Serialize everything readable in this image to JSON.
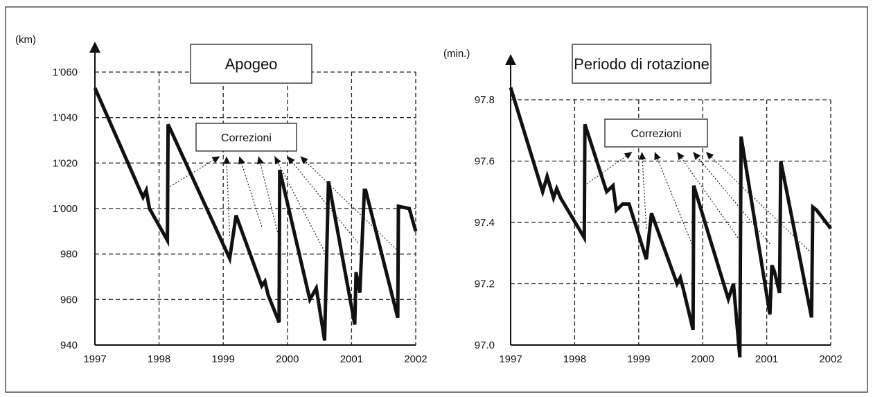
{
  "chart_data": [
    {
      "type": "line",
      "title": "Apogeo",
      "ylabel": "(km)",
      "xlabel": "",
      "annotation": "Correzioni",
      "ylim": [
        940,
        1060
      ],
      "xlim": [
        1997,
        2002
      ],
      "grid": true,
      "x_ticks": [
        "1997",
        "1998",
        "1999",
        "2000",
        "2001",
        "2002"
      ],
      "y_ticks": [
        "940",
        "960",
        "980",
        "1'000",
        "1'020",
        "1'040",
        "1'060"
      ],
      "series": [
        {
          "x": [
            1997.0,
            1997.75,
            1997.8,
            1997.85,
            1998.13,
            1998.14,
            1999.1,
            1999.2,
            1999.6,
            1999.65,
            1999.7,
            1999.87,
            1999.88,
            2000.35,
            2000.45,
            2000.58,
            2000.64,
            2001.05,
            2001.07,
            2001.13,
            2001.2,
            2001.22,
            2001.72,
            2001.73,
            2001.9,
            2002.0
          ],
          "y": [
            1053,
            1005,
            1008,
            1000,
            986,
            1037,
            978,
            997,
            966,
            968,
            962,
            950,
            1017,
            960,
            965,
            942,
            1012,
            949,
            972,
            963,
            1008,
            1008,
            952,
            1001,
            1000,
            990
          ]
        }
      ],
      "corrections": [
        {
          "from": [
            1998.13,
            1009
          ],
          "to": [
            1998.95,
            1023
          ]
        },
        {
          "from": [
            1999.1,
            988
          ],
          "to": [
            1999.05,
            1023
          ]
        },
        {
          "from": [
            1999.6,
            992
          ],
          "to": [
            1999.25,
            1023
          ]
        },
        {
          "from": [
            1999.87,
            987
          ],
          "to": [
            1999.55,
            1023
          ]
        },
        {
          "from": [
            2000.6,
            980
          ],
          "to": [
            1999.8,
            1023
          ]
        },
        {
          "from": [
            2001.1,
            985
          ],
          "to": [
            2000.0,
            1023
          ]
        },
        {
          "from": [
            2001.7,
            982
          ],
          "to": [
            2000.2,
            1023
          ]
        }
      ]
    },
    {
      "type": "line",
      "title": "Periodo di rotazione",
      "ylabel": "(min.)",
      "xlabel": "",
      "annotation": "Correzioni",
      "ylim": [
        97.0,
        97.8
      ],
      "xlim": [
        1997,
        2002
      ],
      "grid": true,
      "x_ticks": [
        "1997",
        "1998",
        "1999",
        "2000",
        "2001",
        "2002"
      ],
      "y_ticks": [
        "97.0",
        "97.2",
        "97.4",
        "97.6",
        "97.8"
      ],
      "series": [
        {
          "x": [
            1997.0,
            1997.5,
            1997.57,
            1997.67,
            1997.72,
            1997.78,
            1998.15,
            1998.16,
            1998.5,
            1998.6,
            1998.65,
            1998.75,
            1998.85,
            1999.12,
            1999.2,
            1999.6,
            1999.65,
            1999.7,
            1999.85,
            1999.86,
            2000.4,
            2000.48,
            2000.58,
            2000.6,
            2001.05,
            2001.08,
            2001.12,
            2001.2,
            2001.22,
            2001.7,
            2001.72,
            2001.78,
            2002.0
          ],
          "y": [
            97.84,
            97.5,
            97.55,
            97.48,
            97.51,
            97.48,
            97.35,
            97.72,
            97.5,
            97.52,
            97.44,
            97.46,
            97.46,
            97.28,
            97.43,
            97.2,
            97.22,
            97.18,
            97.05,
            97.52,
            97.15,
            97.2,
            96.96,
            97.68,
            97.1,
            97.26,
            97.24,
            97.17,
            97.6,
            97.09,
            97.45,
            97.44,
            97.38
          ]
        }
      ],
      "corrections": [
        {
          "from": [
            1998.15,
            97.52
          ],
          "to": [
            1998.9,
            97.63
          ]
        },
        {
          "from": [
            1999.12,
            97.38
          ],
          "to": [
            1999.05,
            97.63
          ]
        },
        {
          "from": [
            1999.85,
            97.32
          ],
          "to": [
            1999.25,
            97.63
          ]
        },
        {
          "from": [
            2000.55,
            97.35
          ],
          "to": [
            1999.6,
            97.63
          ]
        },
        {
          "from": [
            2001.05,
            97.33
          ],
          "to": [
            1999.85,
            97.63
          ]
        },
        {
          "from": [
            2001.7,
            97.3
          ],
          "to": [
            2000.05,
            97.63
          ]
        }
      ]
    }
  ]
}
